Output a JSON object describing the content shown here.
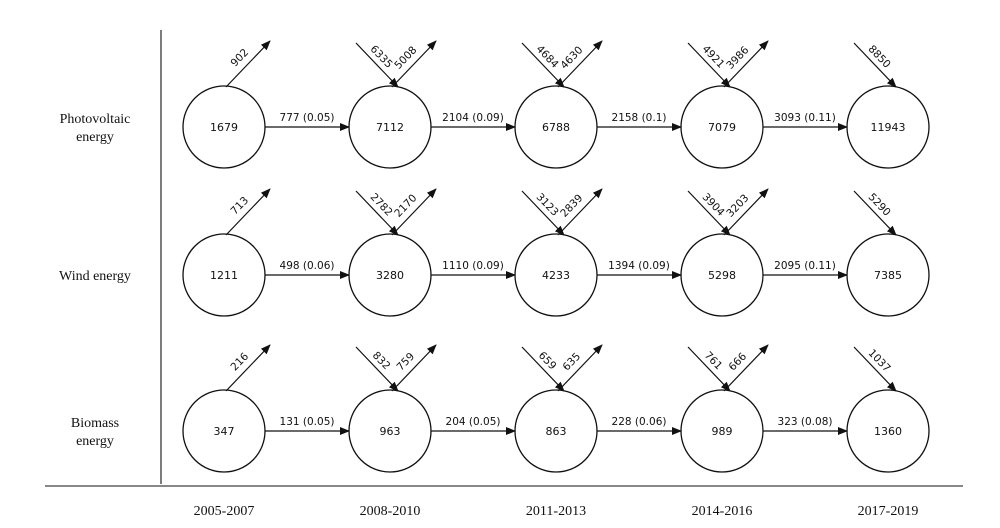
{
  "periods": [
    "2005-2007",
    "2008-2010",
    "2011-2013",
    "2014-2016",
    "2017-2019"
  ],
  "rows": [
    {
      "label_lines": [
        "Photovoltaic",
        "energy"
      ],
      "nodes": [
        "1679",
        "7112",
        "6788",
        "7079",
        "11943"
      ],
      "edges": [
        "777 (0.05)",
        "2104 (0.09)",
        "2158 (0.1)",
        "3093 (0.11)"
      ],
      "incoming": [
        "",
        "6335",
        "4684",
        "4921",
        "8850"
      ],
      "outgoing": [
        "902",
        "5008",
        "4630",
        "3986",
        ""
      ]
    },
    {
      "label_lines": [
        "Wind energy"
      ],
      "nodes": [
        "1211",
        "3280",
        "4233",
        "5298",
        "7385"
      ],
      "edges": [
        "498 (0.06)",
        "1110 (0.09)",
        "1394 (0.09)",
        "2095 (0.11)"
      ],
      "incoming": [
        "",
        "2782",
        "3123",
        "3904",
        "5290"
      ],
      "outgoing": [
        "713",
        "2170",
        "2839",
        "3203",
        ""
      ]
    },
    {
      "label_lines": [
        "Biomass",
        "energy"
      ],
      "nodes": [
        "347",
        "963",
        "863",
        "989",
        "1360"
      ],
      "edges": [
        "131 (0.05)",
        "204 (0.05)",
        "228 (0.06)",
        "323 (0.08)"
      ],
      "incoming": [
        "",
        "832",
        "659",
        "761",
        "1037"
      ],
      "outgoing": [
        "216",
        "759",
        "635",
        "666",
        ""
      ]
    }
  ]
}
